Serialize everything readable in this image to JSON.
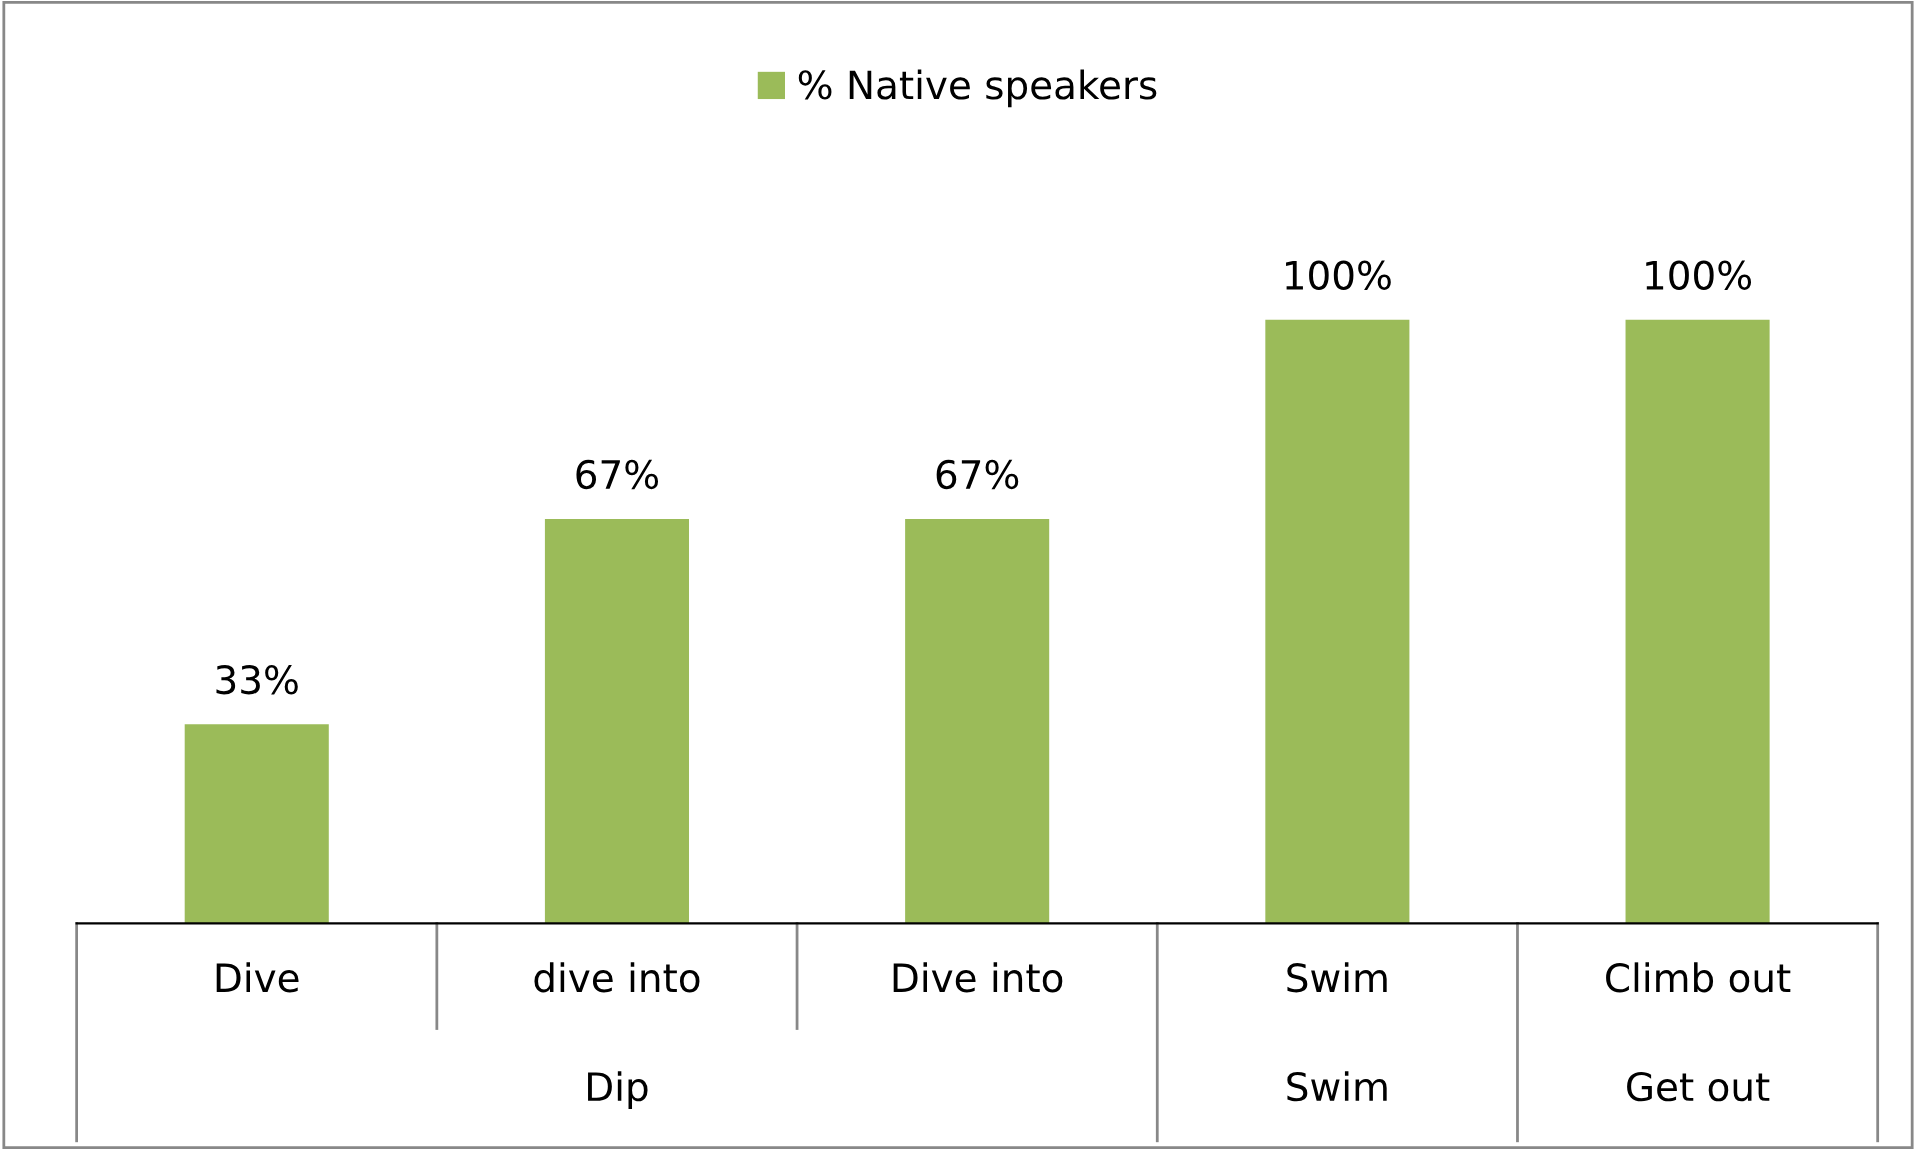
{
  "chart_data": {
    "type": "bar",
    "categories": [
      "Dive",
      "dive into",
      "Dive into",
      "Swim",
      "Climb out"
    ],
    "series": [
      {
        "name": "% Native speakers",
        "color": "#9bbb59",
        "values": [
          33,
          67,
          67,
          100,
          100
        ],
        "value_labels": [
          "33%",
          "67%",
          "67%",
          "100%",
          "100%"
        ]
      }
    ],
    "annotations": [
      "Dip",
      "Swim",
      "Get out"
    ],
    "legend": "top"
  }
}
